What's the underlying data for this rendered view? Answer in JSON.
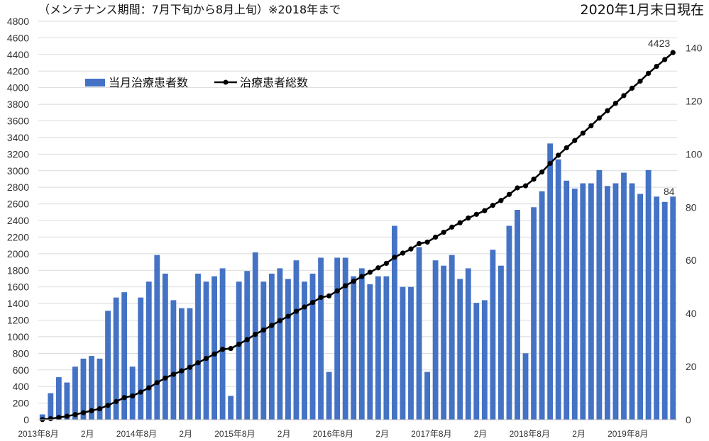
{
  "chart_data": {
    "type": "bar",
    "note": "（メンテナンス期間：7月下旬から8月上旬）※2018年まで",
    "as_of": "2020年1月末日現在",
    "x_tick_labels": [
      "2013年8月",
      "2月",
      "2014年8月",
      "2月",
      "2015年8月",
      "2月",
      "2016年8月",
      "2月",
      "2017年8月",
      "2月",
      "2018年8月",
      "2月",
      "2019年8月"
    ],
    "y_left_ticks": [
      "0",
      "200",
      "400",
      "600",
      "800",
      "1000",
      "1200",
      "1400",
      "1600",
      "1800",
      "2000",
      "2200",
      "2400",
      "2600",
      "2800",
      "3000",
      "3200",
      "3400",
      "3600",
      "3800",
      "4000",
      "4200",
      "4400",
      "4600",
      "4800"
    ],
    "y_right_ticks": [
      "0",
      "20",
      "40",
      "60",
      "80",
      "100",
      "120",
      "140"
    ],
    "ylim_left": [
      0,
      4800
    ],
    "ylim_right": [
      0,
      150
    ],
    "grid": true,
    "legend_position": "upper-left",
    "series": [
      {
        "name": "当月治療患者数",
        "type": "bar",
        "axis": "right",
        "color": "#4472C4",
        "values": [
          2,
          10,
          16,
          14,
          20,
          23,
          24,
          23,
          41,
          46,
          48,
          20,
          46,
          52,
          62,
          55,
          45,
          42,
          42,
          55,
          52,
          54,
          57,
          9,
          52,
          56,
          63,
          52,
          55,
          57,
          53,
          60,
          52,
          55,
          61,
          18,
          61,
          61,
          54,
          57,
          51,
          54,
          54,
          73,
          50,
          50,
          65,
          18,
          60,
          58,
          62,
          53,
          57,
          44,
          45,
          64,
          58,
          73,
          79,
          25,
          80,
          86,
          104,
          98,
          90,
          87,
          89,
          89,
          94,
          88,
          89,
          93,
          89,
          85,
          94,
          84,
          82,
          84
        ]
      },
      {
        "name": "治療患者総数",
        "type": "line",
        "axis": "left",
        "color": "#000000",
        "values": [
          2,
          12,
          28,
          42,
          62,
          85,
          109,
          132,
          173,
          219,
          267,
          287,
          333,
          385,
          447,
          502,
          547,
          589,
          631,
          686,
          738,
          792,
          849,
          858,
          910,
          966,
          1029,
          1081,
          1136,
          1193,
          1246,
          1306,
          1358,
          1413,
          1474,
          1492,
          1553,
          1614,
          1668,
          1725,
          1776,
          1830,
          1884,
          1957,
          2007,
          2057,
          2122,
          2140,
          2200,
          2258,
          2320,
          2373,
          2430,
          2474,
          2519,
          2583,
          2641,
          2714,
          2793,
          2818,
          2898,
          2984,
          3088,
          3186,
          3276,
          3363,
          3452,
          3541,
          3635,
          3723,
          3812,
          3905,
          3994,
          4079,
          4173,
          4257,
          4339,
          4423
        ]
      }
    ],
    "annotations": [
      "4423",
      "84"
    ]
  }
}
